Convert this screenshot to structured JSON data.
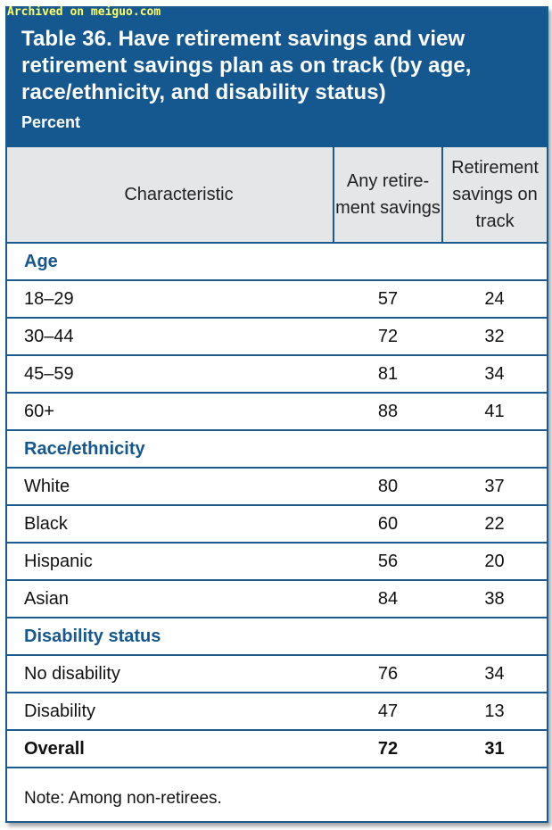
{
  "watermark": "Archived on meiguo.com",
  "table": {
    "title": "Table 36. Have retirement savings and view retirement savings plan as on track (by age, race/ethnicity, and disability status)",
    "subtitle": "Percent",
    "columns": {
      "characteristic": "Characteristic",
      "any_savings_line1": "Any retire-",
      "any_savings_line2": "ment savings",
      "on_track_line1": "Retirement",
      "on_track_line2": "savings on",
      "on_track_line3": "track"
    },
    "sections": [
      {
        "heading": "Age",
        "rows": [
          {
            "label": "18–29",
            "any": "57",
            "track": "24"
          },
          {
            "label": "30–44",
            "any": "72",
            "track": "32"
          },
          {
            "label": "45–59",
            "any": "81",
            "track": "34"
          },
          {
            "label": "60+",
            "any": "88",
            "track": "41"
          }
        ]
      },
      {
        "heading": "Race/ethnicity",
        "rows": [
          {
            "label": "White",
            "any": "80",
            "track": "37"
          },
          {
            "label": "Black",
            "any": "60",
            "track": "22"
          },
          {
            "label": "Hispanic",
            "any": "56",
            "track": "20"
          },
          {
            "label": "Asian",
            "any": "84",
            "track": "38"
          }
        ]
      },
      {
        "heading": "Disability status",
        "rows": [
          {
            "label": "No disability",
            "any": "76",
            "track": "34"
          },
          {
            "label": "Disability",
            "any": "47",
            "track": "13"
          }
        ]
      }
    ],
    "overall": {
      "label": "Overall",
      "any": "72",
      "track": "31"
    },
    "note": "Note: Among non-retirees."
  },
  "colors": {
    "accent_blue": "#15578f",
    "header_gray": "#e4e6e8",
    "watermark_yellow": "#ffff66"
  }
}
